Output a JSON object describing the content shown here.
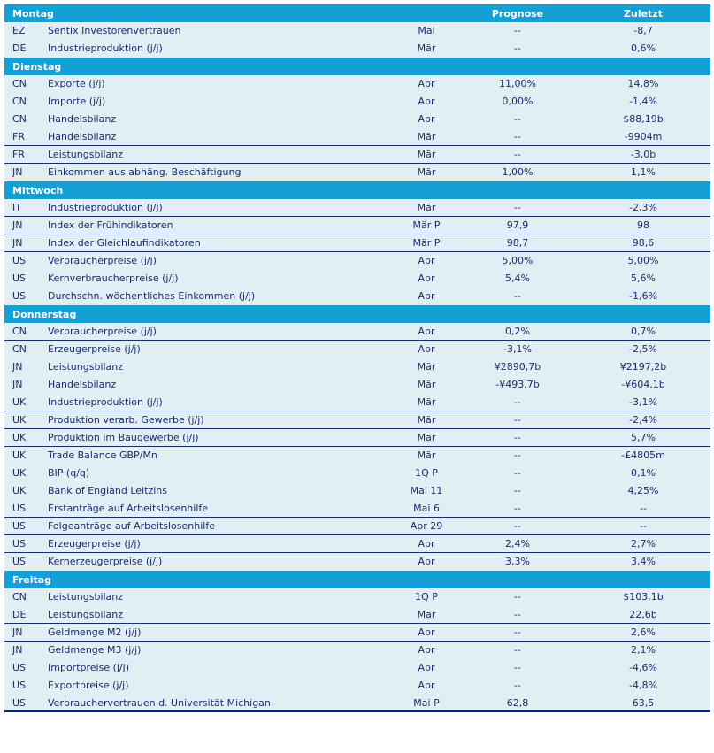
{
  "columns": {
    "forecast": "Prognose",
    "previous": "Zuletzt"
  },
  "colors": {
    "header": "#14a0d5",
    "row": "#e1eff4",
    "text": "#1c2a6e",
    "rule": "#12306b"
  },
  "days": [
    {
      "day": "Montag",
      "rows": [
        {
          "c": "EZ",
          "n": "Sentix Investorenvertrauen",
          "p": "Mai",
          "f": "--",
          "l": "-8,7"
        },
        {
          "c": "DE",
          "n": "Industrieproduktion (j/j)",
          "p": "Mär",
          "f": "--",
          "l": "0,6%"
        }
      ]
    },
    {
      "day": "Dienstag",
      "rows": [
        {
          "c": "CN",
          "n": "Exporte (j/j)",
          "p": "Apr",
          "f": "11,00%",
          "l": "14,8%"
        },
        {
          "c": "CN",
          "n": "Importe (j/j)",
          "p": "Apr",
          "f": "0,00%",
          "l": "-1,4%"
        },
        {
          "c": "CN",
          "n": "Handelsbilanz",
          "p": "Apr",
          "f": "--",
          "l": "$88,19b"
        },
        {
          "c": "FR",
          "n": "Handelsbilanz",
          "p": "Mär",
          "f": "--",
          "l": "-9904m",
          "line": true
        },
        {
          "c": "FR",
          "n": "Leistungsbilanz",
          "p": "Mär",
          "f": "--",
          "l": "-3,0b",
          "line": true
        },
        {
          "c": "JN",
          "n": "Einkommen aus abhäng. Beschäftigung",
          "p": "Mär",
          "f": "1,00%",
          "l": "1,1%"
        }
      ]
    },
    {
      "day": "Mittwoch",
      "rows": [
        {
          "c": "IT",
          "n": "Industrieproduktion (j/j)",
          "p": "Mär",
          "f": "--",
          "l": "-2,3%",
          "line": true
        },
        {
          "c": "JN",
          "n": "Index der Frühindikatoren",
          "p": "Mär P",
          "f": "97,9",
          "l": "98",
          "line": true
        },
        {
          "c": "JN",
          "n": "Index der Gleichlaufindikatoren",
          "p": "Mär P",
          "f": "98,7",
          "l": "98,6",
          "line": true
        },
        {
          "c": "US",
          "n": "Verbraucherpreise (j/j)",
          "p": "Apr",
          "f": "5,00%",
          "l": "5,00%"
        },
        {
          "c": "US",
          "n": "Kernverbraucherpreise (j/j)",
          "p": "Apr",
          "f": "5,4%",
          "l": "5,6%"
        },
        {
          "c": "US",
          "n": "Durchschn. wöchentliches Einkommen (j/j)",
          "p": "Apr",
          "f": "--",
          "l": "-1,6%"
        }
      ]
    },
    {
      "day": "Donnerstag",
      "rows": [
        {
          "c": "CN",
          "n": "Verbraucherpreise (j/j)",
          "p": "Apr",
          "f": "0,2%",
          "l": "0,7%",
          "line": true
        },
        {
          "c": "CN",
          "n": "Erzeugerpreise (j/j)",
          "p": "Apr",
          "f": "-3,1%",
          "l": "-2,5%"
        },
        {
          "c": "JN",
          "n": "Leistungsbilanz",
          "p": "Mär",
          "f": "¥2890,7b",
          "l": "¥2197,2b"
        },
        {
          "c": "JN",
          "n": "Handelsbilanz",
          "p": "Mär",
          "f": "-¥493,7b",
          "l": "-¥604,1b"
        },
        {
          "c": "UK",
          "n": "Industrieproduktion (j/j)",
          "p": "Mär",
          "f": "--",
          "l": "-3,1%",
          "line": true
        },
        {
          "c": "UK",
          "n": "Produktion verarb. Gewerbe (j/j)",
          "p": "Mär",
          "f": "--",
          "l": "-2,4%",
          "line": true
        },
        {
          "c": "UK",
          "n": "Produktion im Baugewerbe (j/j)",
          "p": "Mär",
          "f": "--",
          "l": "5,7%",
          "line": true
        },
        {
          "c": "UK",
          "n": "Trade Balance GBP/Mn",
          "p": "Mär",
          "f": "--",
          "l": "-£4805m"
        },
        {
          "c": "UK",
          "n": "BIP (q/q)",
          "p": "1Q P",
          "f": "--",
          "l": "0,1%"
        },
        {
          "c": "UK",
          "n": "Bank of England Leitzins",
          "p": "Mai 11",
          "f": "--",
          "l": "4,25%"
        },
        {
          "c": "US",
          "n": "Erstanträge auf Arbeitslosenhilfe",
          "p": "Mai 6",
          "f": "--",
          "l": "--",
          "line": true
        },
        {
          "c": "US",
          "n": "Folgeanträge auf Arbeitslosenhilfe",
          "p": "Apr 29",
          "f": "--",
          "l": "--",
          "line": true
        },
        {
          "c": "US",
          "n": "Erzeugerpreise (j/j)",
          "p": "Apr",
          "f": "2,4%",
          "l": "2,7%",
          "line": true
        },
        {
          "c": "US",
          "n": "Kernerzeugerpreise (j/j)",
          "p": "Apr",
          "f": "3,3%",
          "l": "3,4%"
        }
      ]
    },
    {
      "day": "Freitag",
      "rows": [
        {
          "c": "CN",
          "n": "Leistungsbilanz",
          "p": "1Q P",
          "f": "--",
          "l": "$103,1b"
        },
        {
          "c": "DE",
          "n": "Leistungsbilanz",
          "p": "Mär",
          "f": "--",
          "l": "22,6b",
          "line": true
        },
        {
          "c": "JN",
          "n": "Geldmenge M2 (j/j)",
          "p": "Apr",
          "f": "--",
          "l": "2,6%",
          "line": true
        },
        {
          "c": "JN",
          "n": "Geldmenge M3 (j/j)",
          "p": "Apr",
          "f": "--",
          "l": "2,1%"
        },
        {
          "c": "US",
          "n": "Importpreise (j/j)",
          "p": "Apr",
          "f": "--",
          "l": "-4,6%"
        },
        {
          "c": "US",
          "n": "Exportpreise (j/j)",
          "p": "Apr",
          "f": "--",
          "l": "-4,8%"
        },
        {
          "c": "US",
          "n": "Verbrauchervertrauen d. Universität Michigan",
          "p": "Mai P",
          "f": "62,8",
          "l": "63,5"
        }
      ]
    }
  ]
}
